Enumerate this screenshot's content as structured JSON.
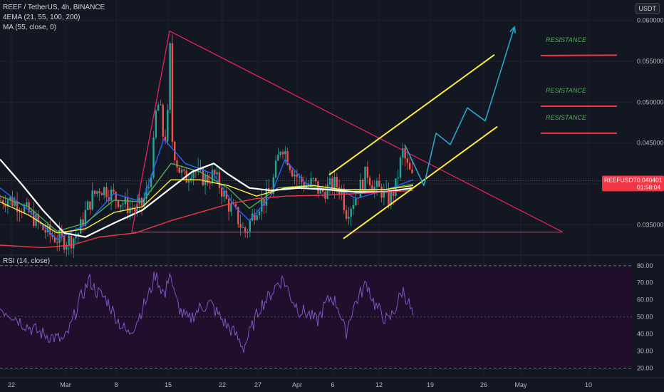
{
  "header": {
    "symbol_line": "REEF / TetherUS, 4h, BINANCE",
    "indicator_ema": "4EMA (21, 55, 100, 200)",
    "indicator_ma": "MA (55, close, 0)",
    "currency": "USDT"
  },
  "colors": {
    "background": "#131722",
    "grid": "#1e222d",
    "axis_text": "#b2b5be",
    "candle_up": "#26a69a",
    "candle_down": "#ef5350",
    "rsi_fill": "#1f0f2d",
    "rsi_line": "#7e57c2",
    "triangle": "#e91e63",
    "channel": "#ffeb3b",
    "projection": "#26a6c9",
    "resistance_line": "#f23645",
    "resistance_text": "#4caf50",
    "price_tag": "#f23645"
  },
  "chart_data": [
    {
      "type": "candlestick",
      "title": "REEF / TetherUS, 4h, BINANCE",
      "x_ticks": [
        "22",
        "Mar",
        "8",
        "15",
        "22",
        "27",
        "Apr",
        "6",
        "12",
        "19",
        "26",
        "May",
        "10"
      ],
      "y_ticks": [
        "0.035000",
        "0.040000",
        "0.045000",
        "0.050000",
        "0.055000",
        "0.060000"
      ],
      "ylim": [
        0.0318,
        0.0625
      ],
      "price_label": "REEFUSDT",
      "price_value": "0.040401",
      "countdown": "01:58:04",
      "price_path": [
        [
          0,
          0.038
        ],
        [
          10,
          0.0382
        ],
        [
          20,
          0.0378
        ],
        [
          30,
          0.0372
        ],
        [
          40,
          0.0365
        ],
        [
          50,
          0.0355
        ],
        [
          60,
          0.0345
        ],
        [
          70,
          0.0338
        ],
        [
          80,
          0.0333
        ],
        [
          90,
          0.033
        ],
        [
          100,
          0.0332
        ],
        [
          110,
          0.034
        ],
        [
          120,
          0.0365
        ],
        [
          130,
          0.0385
        ],
        [
          140,
          0.0395
        ],
        [
          150,
          0.0392
        ],
        [
          160,
          0.0385
        ],
        [
          170,
          0.0378
        ],
        [
          180,
          0.0372
        ],
        [
          190,
          0.0368
        ],
        [
          200,
          0.0375
        ],
        [
          210,
          0.04
        ],
        [
          215,
          0.044
        ],
        [
          220,
          0.05
        ],
        [
          225,
          0.049
        ],
        [
          230,
          0.045
        ],
        [
          235,
          0.047
        ],
        [
          238,
          0.0585
        ],
        [
          242,
          0.045
        ],
        [
          250,
          0.042
        ],
        [
          260,
          0.0405
        ],
        [
          270,
          0.042
        ],
        [
          280,
          0.041
        ],
        [
          290,
          0.0405
        ],
        [
          300,
          0.0412
        ],
        [
          310,
          0.0395
        ],
        [
          320,
          0.0375
        ],
        [
          330,
          0.0365
        ],
        [
          340,
          0.0345
        ],
        [
          345,
          0.034
        ],
        [
          350,
          0.0352
        ],
        [
          360,
          0.0372
        ],
        [
          370,
          0.038
        ],
        [
          380,
          0.039
        ],
        [
          390,
          0.043
        ],
        [
          395,
          0.045
        ],
        [
          400,
          0.044
        ],
        [
          410,
          0.0418
        ],
        [
          420,
          0.0405
        ],
        [
          430,
          0.0398
        ],
        [
          440,
          0.0402
        ],
        [
          450,
          0.0388
        ],
        [
          460,
          0.0395
        ],
        [
          470,
          0.04
        ],
        [
          480,
          0.0392
        ],
        [
          485,
          0.0365
        ],
        [
          495,
          0.0378
        ],
        [
          505,
          0.0395
        ],
        [
          515,
          0.0415
        ],
        [
          525,
          0.0395
        ],
        [
          535,
          0.0392
        ],
        [
          545,
          0.038
        ],
        [
          555,
          0.0395
        ],
        [
          565,
          0.044
        ],
        [
          572,
          0.042
        ],
        [
          580,
          0.0404
        ]
      ],
      "ema_series": [
        {
          "color": "#2962ff",
          "points": [
            [
              0,
              0.0395
            ],
            [
              40,
              0.0368
            ],
            [
              80,
              0.0332
            ],
            [
              120,
              0.035
            ],
            [
              160,
              0.0388
            ],
            [
              200,
              0.0378
            ],
            [
              230,
              0.0455
            ],
            [
              260,
              0.0425
            ],
            [
              300,
              0.0412
            ],
            [
              330,
              0.0372
            ],
            [
              350,
              0.0355
            ],
            [
              380,
              0.0385
            ],
            [
              400,
              0.043
            ],
            [
              430,
              0.04
            ],
            [
              480,
              0.0392
            ],
            [
              500,
              0.0382
            ],
            [
              540,
              0.0392
            ],
            [
              580,
              0.0405
            ]
          ]
        },
        {
          "color": "#4caf50",
          "points": [
            [
              0,
              0.0385
            ],
            [
              40,
              0.0372
            ],
            [
              80,
              0.0342
            ],
            [
              120,
              0.0352
            ],
            [
              160,
              0.038
            ],
            [
              200,
              0.0378
            ],
            [
              240,
              0.0425
            ],
            [
              280,
              0.0415
            ],
            [
              320,
              0.0395
            ],
            [
              350,
              0.037
            ],
            [
              390,
              0.0395
            ],
            [
              430,
              0.0398
            ],
            [
              480,
              0.039
            ],
            [
              540,
              0.0393
            ],
            [
              580,
              0.04
            ]
          ]
        },
        {
          "color": "#ffeb3b",
          "points": [
            [
              0,
              0.0378
            ],
            [
              40,
              0.0362
            ],
            [
              80,
              0.034
            ],
            [
              120,
              0.0345
            ],
            [
              160,
              0.0365
            ],
            [
              200,
              0.0372
            ],
            [
              240,
              0.0405
            ],
            [
              280,
              0.0405
            ],
            [
              320,
              0.0398
            ],
            [
              360,
              0.0385
            ],
            [
              400,
              0.0395
            ],
            [
              440,
              0.0398
            ],
            [
              480,
              0.0393
            ],
            [
              540,
              0.0393
            ],
            [
              580,
              0.0398
            ]
          ]
        },
        {
          "color": "#ffffff",
          "points": [
            [
              0,
              0.043
            ],
            [
              30,
              0.04
            ],
            [
              60,
              0.0368
            ],
            [
              90,
              0.034
            ],
            [
              120,
              0.0335
            ],
            [
              160,
              0.0352
            ],
            [
              200,
              0.0368
            ],
            [
              240,
              0.0395
            ],
            [
              270,
              0.0415
            ],
            [
              300,
              0.0425
            ],
            [
              320,
              0.0412
            ],
            [
              350,
              0.0395
            ],
            [
              380,
              0.0392
            ],
            [
              420,
              0.0395
            ],
            [
              460,
              0.0393
            ],
            [
              500,
              0.039
            ],
            [
              540,
              0.039
            ],
            [
              580,
              0.0395
            ]
          ]
        },
        {
          "color": "#f23645",
          "points": [
            [
              0,
              0.0325
            ],
            [
              60,
              0.0322
            ],
            [
              100,
              0.0325
            ],
            [
              140,
              0.0335
            ],
            [
              190,
              0.034
            ],
            [
              240,
              0.0355
            ],
            [
              280,
              0.0365
            ],
            [
              320,
              0.0375
            ],
            [
              360,
              0.0382
            ],
            [
              400,
              0.0385
            ],
            [
              450,
              0.0386
            ],
            [
              500,
              0.0388
            ],
            [
              540,
              0.039
            ],
            [
              580,
              0.0392
            ]
          ]
        }
      ],
      "annotations": {
        "resistance_label": "RESISTANCE",
        "resistance_levels": [
          0.0557,
          0.0495,
          0.0462
        ],
        "triangle": [
          [
            238,
            0.0587
          ],
          [
            790,
            0.0341
          ],
          [
            185,
            0.0341
          ]
        ],
        "channel_upper": [
          [
            462,
            0.0411
          ],
          [
            694,
            0.0558
          ]
        ],
        "channel_lower": [
          [
            482,
            0.0333
          ],
          [
            698,
            0.047
          ]
        ],
        "projection": [
          [
            568,
            0.0448
          ],
          [
            595,
            0.0398
          ],
          [
            612,
            0.0462
          ],
          [
            632,
            0.0448
          ],
          [
            656,
            0.0493
          ],
          [
            681,
            0.0477
          ],
          [
            722,
            0.0592
          ]
        ]
      }
    },
    {
      "type": "line",
      "title": "RSI (14, close)",
      "y_ticks": [
        "20.00",
        "30.00",
        "40.00",
        "50.00",
        "60.00",
        "70.00",
        "80.00"
      ],
      "ylim": [
        16,
        82
      ],
      "band": [
        20,
        80
      ],
      "midline": 50,
      "points": [
        [
          0,
          55
        ],
        [
          15,
          52
        ],
        [
          30,
          47
        ],
        [
          45,
          43
        ],
        [
          60,
          40
        ],
        [
          75,
          38
        ],
        [
          90,
          36
        ],
        [
          100,
          45
        ],
        [
          110,
          58
        ],
        [
          118,
          65
        ],
        [
          125,
          72
        ],
        [
          135,
          65
        ],
        [
          150,
          60
        ],
        [
          160,
          52
        ],
        [
          170,
          45
        ],
        [
          180,
          40
        ],
        [
          190,
          46
        ],
        [
          200,
          55
        ],
        [
          210,
          64
        ],
        [
          218,
          75
        ],
        [
          225,
          68
        ],
        [
          232,
          62
        ],
        [
          238,
          78
        ],
        [
          245,
          62
        ],
        [
          255,
          52
        ],
        [
          265,
          48
        ],
        [
          280,
          55
        ],
        [
          295,
          58
        ],
        [
          305,
          52
        ],
        [
          318,
          45
        ],
        [
          330,
          40
        ],
        [
          342,
          32
        ],
        [
          352,
          42
        ],
        [
          365,
          56
        ],
        [
          378,
          62
        ],
        [
          390,
          70
        ],
        [
          398,
          72
        ],
        [
          408,
          62
        ],
        [
          420,
          54
        ],
        [
          432,
          52
        ],
        [
          445,
          47
        ],
        [
          455,
          56
        ],
        [
          465,
          62
        ],
        [
          475,
          56
        ],
        [
          485,
          40
        ],
        [
          495,
          55
        ],
        [
          505,
          63
        ],
        [
          515,
          70
        ],
        [
          525,
          58
        ],
        [
          535,
          52
        ],
        [
          545,
          47
        ],
        [
          555,
          55
        ],
        [
          565,
          66
        ],
        [
          572,
          60
        ],
        [
          580,
          50
        ]
      ]
    }
  ]
}
